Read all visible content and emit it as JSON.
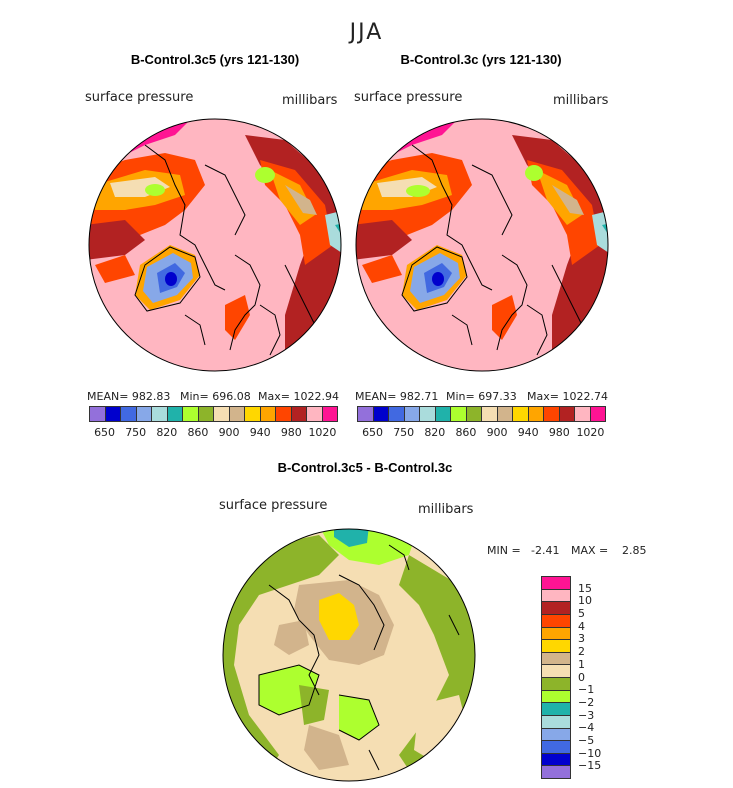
{
  "title": "JJA",
  "panels": [
    {
      "title": "B-Control.3c5 (yrs 121-130)",
      "variable": "surface pressure",
      "units": "millibars",
      "stats": {
        "mean": "MEAN= 982.83",
        "min": "Min= 696.08",
        "max": "Max= 1022.94"
      }
    },
    {
      "title": "B-Control.3c (yrs 121-130)",
      "variable": "surface pressure",
      "units": "millibars",
      "stats": {
        "mean": "MEAN= 982.71",
        "min": "Min= 697.33",
        "max": "Max= 1022.74"
      }
    },
    {
      "title": "B-Control.3c5 - B-Control.3c",
      "variable": "surface pressure",
      "units": "millibars",
      "stats": {
        "min_label": "MIN =",
        "min": "-2.41",
        "max_label": "MAX =",
        "max": "2.85"
      }
    }
  ],
  "colorbar_abs": {
    "colors": [
      "#9370db",
      "#0000cd",
      "#4169e1",
      "#87a8e8",
      "#aadcdc",
      "#20b2aa",
      "#adff2f",
      "#8db42a",
      "#f5deb3",
      "#d2b48c",
      "#ffd700",
      "#ffa500",
      "#ff4500",
      "#b22222",
      "#ffb6c1",
      "#ff1493"
    ],
    "tick_labels": [
      "650",
      "750",
      "820",
      "860",
      "900",
      "940",
      "980",
      "1020"
    ]
  },
  "colorbar_diff": {
    "colors": [
      "#ff1493",
      "#ffb6c1",
      "#b22222",
      "#ff4500",
      "#ffa500",
      "#ffd700",
      "#d2b48c",
      "#f5deb3",
      "#8db42a",
      "#adff2f",
      "#20b2aa",
      "#aadcdc",
      "#87a8e8",
      "#4169e1",
      "#0000cd",
      "#9370db"
    ],
    "tick_labels": [
      "15",
      "10",
      "5",
      "4",
      "3",
      "2",
      "1",
      "0",
      "−1",
      "−2",
      "−3",
      "−4",
      "−5",
      "−10",
      "−15"
    ]
  }
}
